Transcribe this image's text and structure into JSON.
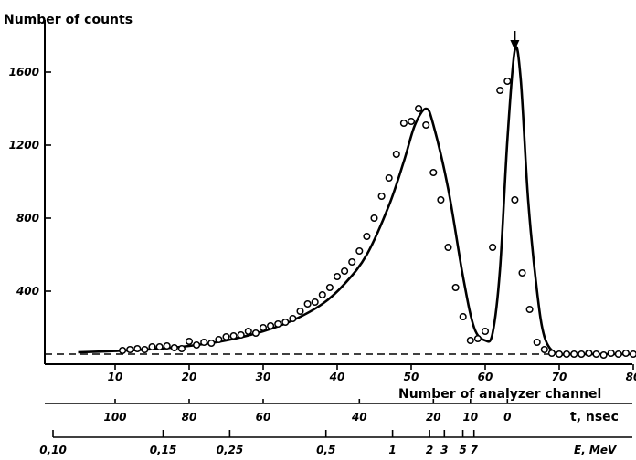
{
  "chart_data": {
    "type": "scatter",
    "ylabel": "Number of counts",
    "xlabel": "Number of analyzer channel",
    "ylim": [
      0,
      1700
    ],
    "xlim": [
      0,
      80
    ],
    "y_ticks": [
      {
        "v": 400,
        "label": "400"
      },
      {
        "v": 800,
        "label": "800"
      },
      {
        "v": 1200,
        "label": "1200"
      },
      {
        "v": 1600,
        "label": "1600"
      }
    ],
    "x_ticks": [
      {
        "v": 10,
        "label": "10"
      },
      {
        "v": 20,
        "label": "20"
      },
      {
        "v": 30,
        "label": "30"
      },
      {
        "v": 40,
        "label": "40"
      },
      {
        "v": 50,
        "label": "50"
      },
      {
        "v": 60,
        "label": "60"
      },
      {
        "v": 70,
        "label": "70"
      },
      {
        "v": 80,
        "label": "80"
      }
    ],
    "t_axis": {
      "label": "t, nsec",
      "ticks": [
        {
          "ch": 10,
          "label": "100"
        },
        {
          "ch": 20,
          "label": "80"
        },
        {
          "ch": 30,
          "label": "60"
        },
        {
          "ch": 43,
          "label": "40"
        },
        {
          "ch": 53,
          "label": "20"
        },
        {
          "ch": 58,
          "label": "10"
        },
        {
          "ch": 63,
          "label": "0"
        }
      ]
    },
    "e_axis": {
      "label": "E, MeV",
      "ticks": [
        {
          "ch": 0,
          "label": "0,10"
        },
        {
          "ch": 15,
          "label": "0,15"
        },
        {
          "ch": 24,
          "label": "0,25"
        },
        {
          "ch": 37,
          "label": "0,5"
        },
        {
          "ch": 46,
          "label": "1"
        },
        {
          "ch": 51,
          "label": "2"
        },
        {
          "ch": 53,
          "label": "3"
        },
        {
          "ch": 55.5,
          "label": "5"
        },
        {
          "ch": 57,
          "label": "7"
        }
      ]
    },
    "background_level": 60,
    "peak_arrow_channel": 64,
    "fit_curve": {
      "x": [
        5,
        10,
        15,
        20,
        25,
        30,
        34,
        38,
        41,
        44,
        47,
        49,
        50.5,
        52,
        53,
        55,
        57,
        58.5,
        60,
        61,
        62,
        63,
        64,
        64.8,
        65.8,
        67,
        68,
        69.5,
        71,
        73,
        76,
        80
      ],
      "y": [
        65,
        72,
        82,
        100,
        130,
        180,
        240,
        330,
        440,
        600,
        870,
        1110,
        1310,
        1400,
        1310,
        960,
        480,
        200,
        130,
        170,
        520,
        1230,
        1720,
        1560,
        900,
        400,
        150,
        58,
        55,
        55,
        55,
        55
      ]
    },
    "measured_points": {
      "x": [
        11,
        12,
        13,
        14,
        15,
        16,
        17,
        18,
        19,
        20,
        21,
        22,
        23,
        24,
        25,
        26,
        27,
        28,
        29,
        30,
        31,
        32,
        33,
        34,
        35,
        36,
        37,
        38,
        39,
        40,
        41,
        42,
        43,
        44,
        45,
        46,
        47,
        48,
        49,
        50,
        51,
        52,
        53,
        54,
        55,
        56,
        57,
        58,
        59,
        60,
        61,
        62,
        63,
        64,
        65,
        66,
        67,
        68,
        69,
        70,
        71,
        72,
        73,
        74,
        75,
        76,
        77,
        78,
        79,
        80
      ],
      "y": [
        75,
        80,
        85,
        80,
        95,
        95,
        100,
        90,
        85,
        125,
        105,
        120,
        115,
        135,
        150,
        155,
        160,
        180,
        170,
        200,
        210,
        220,
        230,
        250,
        290,
        330,
        340,
        380,
        420,
        480,
        510,
        560,
        620,
        700,
        800,
        920,
        1020,
        1150,
        1320,
        1330,
        1400,
        1310,
        1050,
        900,
        640,
        420,
        260,
        130,
        140,
        180,
        640,
        1500,
        1550,
        900,
        500,
        300,
        120,
        80,
        60,
        55,
        55,
        55,
        55,
        60,
        55,
        50,
        60,
        55,
        60,
        55
      ]
    }
  }
}
